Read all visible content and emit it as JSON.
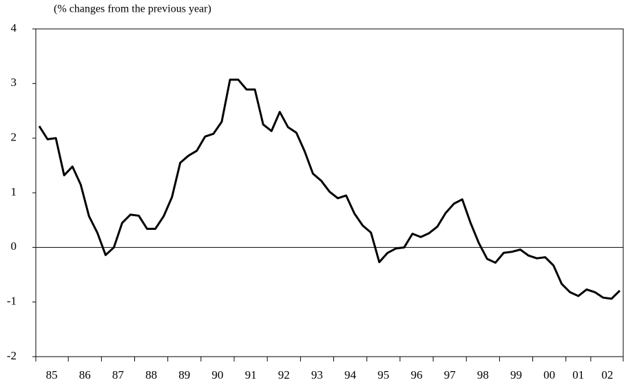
{
  "chart_data": {
    "type": "line",
    "annotation": "(% changes from the previous year)",
    "categories": [
      "85",
      null,
      null,
      null,
      "86",
      null,
      null,
      null,
      "87",
      null,
      null,
      null,
      "88",
      null,
      null,
      null,
      "89",
      null,
      null,
      null,
      "90",
      null,
      null,
      null,
      "91",
      null,
      null,
      null,
      "92",
      null,
      null,
      null,
      "93",
      null,
      null,
      null,
      "94",
      null,
      null,
      null,
      "95",
      null,
      null,
      null,
      "96",
      null,
      null,
      null,
      "97",
      null,
      null,
      null,
      "98",
      null,
      null,
      null,
      "99",
      null,
      null,
      null,
      "00",
      null,
      null,
      null,
      "01",
      null,
      null,
      "02",
      null,
      null,
      null
    ],
    "series": [
      {
        "color": "#000000",
        "values": [
          2.22,
          1.98,
          2.0,
          1.32,
          1.48,
          1.15,
          0.57,
          0.27,
          -0.14,
          0.0,
          0.45,
          0.6,
          0.58,
          0.34,
          0.34,
          0.57,
          0.92,
          1.55,
          1.68,
          1.77,
          2.03,
          2.08,
          2.3,
          3.07,
          3.07,
          2.89,
          2.89,
          2.25,
          2.13,
          2.48,
          2.2,
          2.1,
          1.76,
          1.35,
          1.22,
          1.02,
          0.9,
          0.95,
          0.62,
          0.4,
          0.27,
          -0.27,
          -0.1,
          -0.02,
          0.0,
          0.25,
          0.19,
          0.26,
          0.38,
          0.63,
          0.8,
          0.88,
          0.45,
          0.08,
          -0.21,
          -0.28,
          -0.1,
          -0.08,
          -0.04,
          -0.15,
          -0.2,
          -0.18,
          -0.33,
          -0.67,
          -0.82,
          -0.89,
          -0.77,
          -0.82,
          -0.92,
          -0.94,
          -0.79
        ]
      }
    ],
    "ylim": [
      -2,
      4
    ],
    "yticks": [
      -2,
      -1,
      0,
      1,
      2,
      3,
      4
    ]
  }
}
